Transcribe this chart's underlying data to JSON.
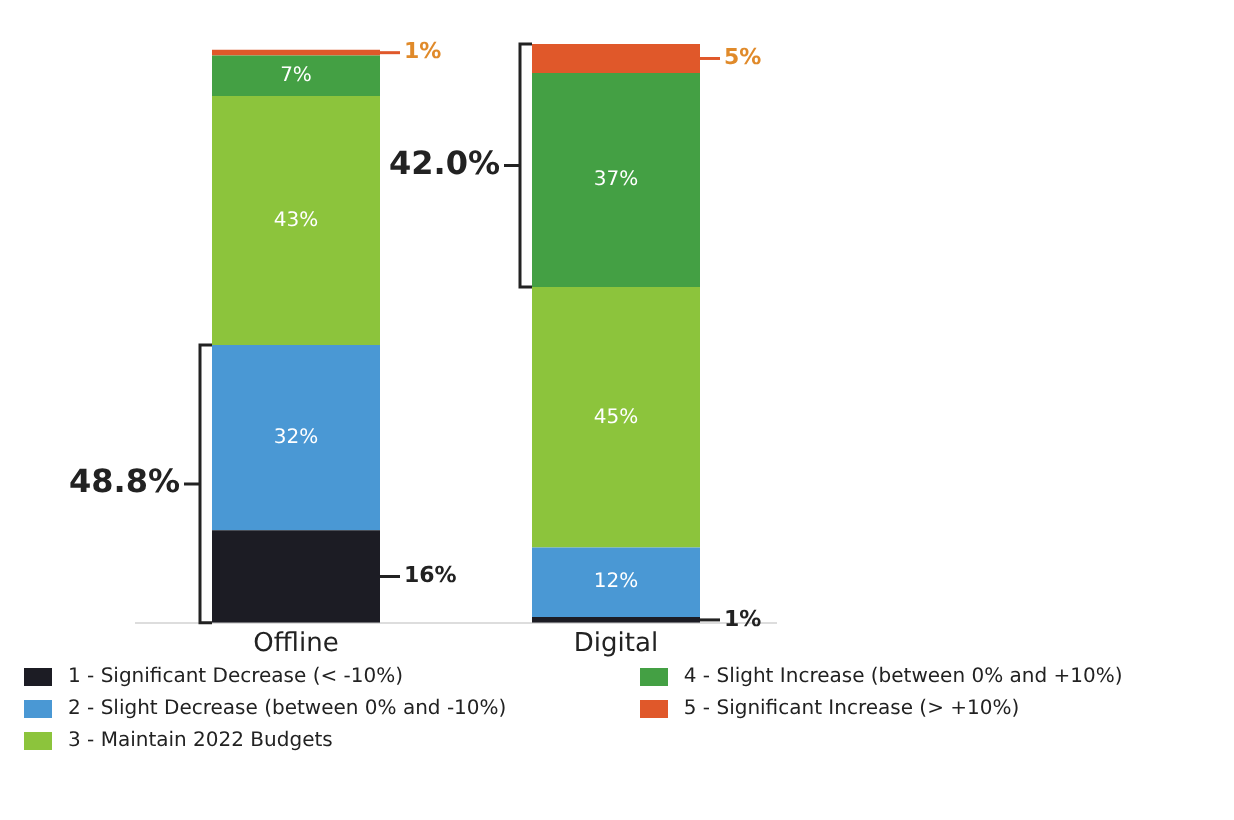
{
  "chart_data": {
    "type": "bar",
    "stacked": true,
    "categories": [
      "Offline",
      "Digital"
    ],
    "series": [
      {
        "name": "1 - Significant Decrease (< -10%)",
        "color": "#1c1c24",
        "values": [
          16,
          1
        ],
        "value_labels": [
          "16%",
          "1%"
        ]
      },
      {
        "name": "2 - Slight Decrease (between 0% and -10%)",
        "color": "#4a98d4",
        "values": [
          32,
          12
        ],
        "value_labels": [
          "32%",
          "12%"
        ]
      },
      {
        "name": "3 - Maintain 2022 Budgets",
        "color": "#8cc43c",
        "values": [
          43,
          45
        ],
        "value_labels": [
          "43%",
          "45%"
        ]
      },
      {
        "name": "4 - Slight Increase (between 0% and +10%)",
        "color": "#44a044",
        "values": [
          7,
          37
        ],
        "value_labels": [
          "7%",
          "37%"
        ]
      },
      {
        "name": "5 - Significant Increase (> +10%)",
        "color": "#e0582a",
        "values": [
          1,
          5
        ],
        "value_labels": [
          "1%",
          "5%"
        ]
      }
    ],
    "annotations": [
      "48.8%",
      "42.0%"
    ],
    "legend": "bottom",
    "grid": false
  }
}
